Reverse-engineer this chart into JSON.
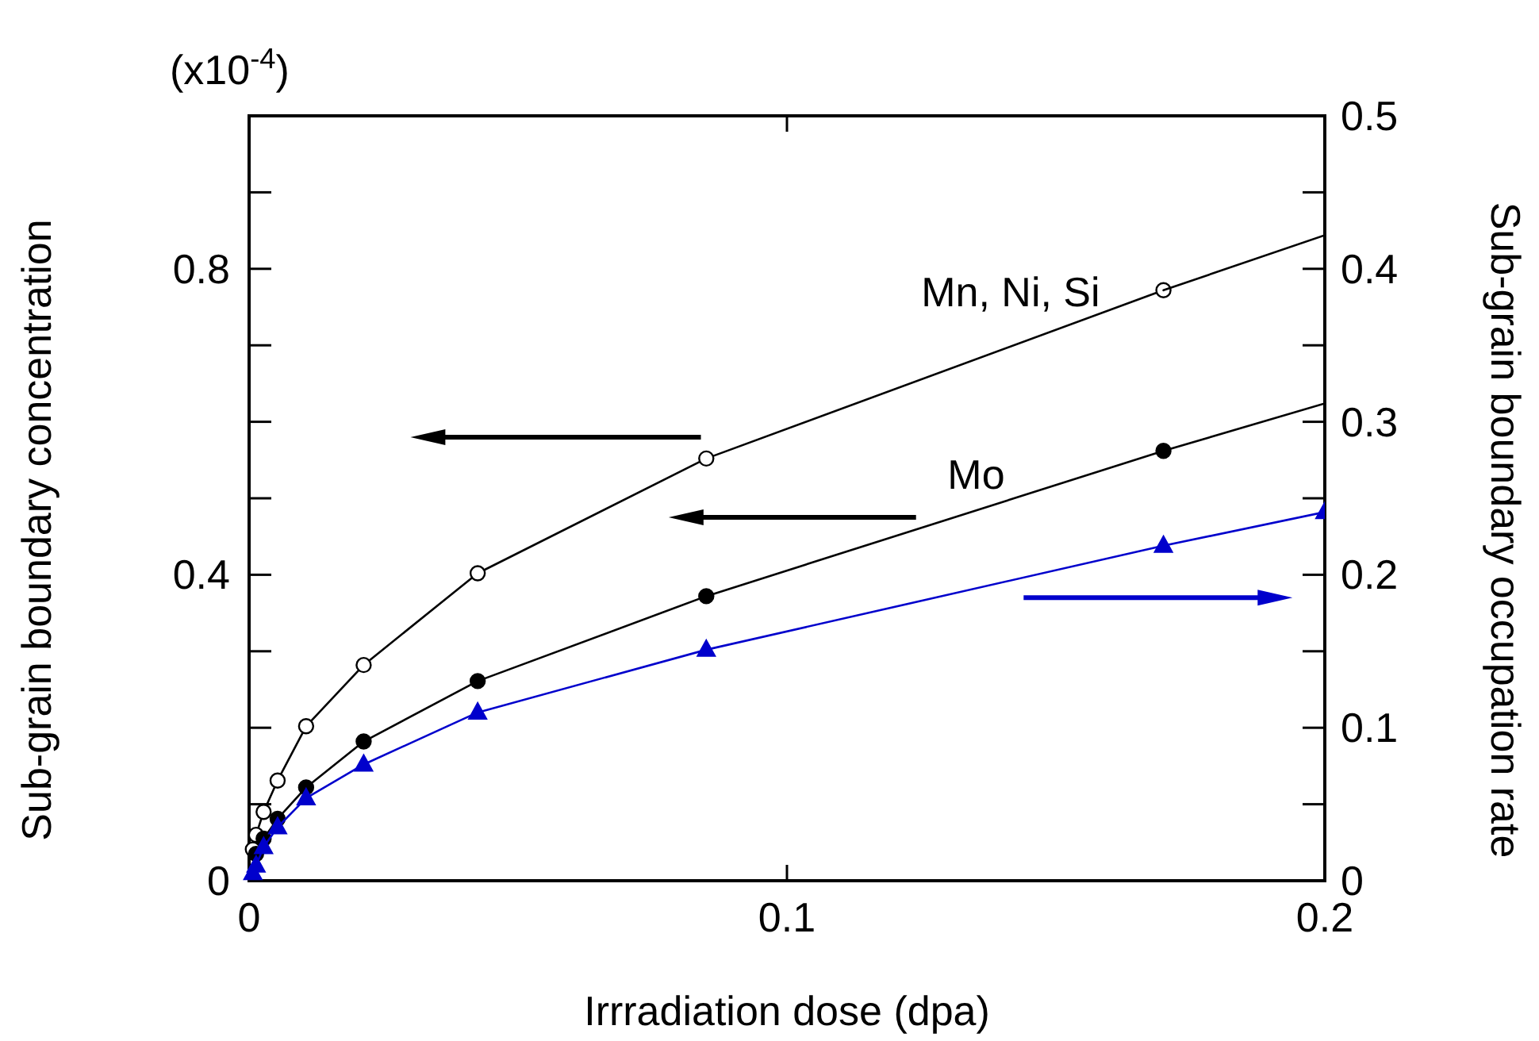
{
  "chart_data": {
    "type": "line",
    "xlabel": "Irrradiation dose (dpa)",
    "ylabel": "Sub-grain boundary concentration",
    "y2label": "Sub-grain boundary occupation rate",
    "annotations": [
      "(x10$^{-4}$)"
    ],
    "xlim": [
      0,
      0.2
    ],
    "xticks": [
      0,
      0.1,
      0.2
    ],
    "ylim": [
      0,
      1.0
    ],
    "yticks": [
      0,
      {
        "value": 0.1,
        "label": null
      },
      {
        "value": 0.2,
        "label": null
      },
      {
        "value": 0.3,
        "label": null
      },
      0.4,
      {
        "value": 0.5,
        "label": null
      },
      {
        "value": 0.6,
        "label": null
      },
      {
        "value": 0.7,
        "label": null
      },
      0.8,
      {
        "value": 0.9,
        "label": null
      }
    ],
    "y2lim": [
      0,
      0.5
    ],
    "y2ticks": [
      0,
      {
        "value": 0.05,
        "label": null
      },
      0.1,
      {
        "value": 0.15,
        "label": null
      },
      0.2,
      {
        "value": 0.25,
        "label": null
      },
      0.3,
      {
        "value": 0.35,
        "label": null
      },
      0.4,
      {
        "value": 0.45,
        "label": null
      },
      0.5
    ],
    "marker": "circle",
    "line_style": "solid",
    "series": [
      {
        "name": "Mn, Ni, Si",
        "color": "#000000",
        "x": [
          0.0007,
          0.0013,
          0.0027,
          0.0053,
          0.0106,
          0.0213,
          0.0425,
          0.085,
          0.17
        ],
        "values": [
          0.041,
          0.06,
          0.09,
          0.131,
          0.202,
          0.282,
          0.402,
          0.552,
          0.772
        ]
      },
      {
        "color": "#000000",
        "marker": "none",
        "x": [
          0.17,
          0.2
        ],
        "values": [
          0.772,
          0.844
        ]
      },
      {
        "name": "Mo",
        "color": "#000000",
        "x": [
          0.0013,
          0.0027,
          0.0053,
          0.0106,
          0.0213,
          0.0425,
          0.085,
          0.17
        ],
        "values": [
          0.035,
          0.055,
          0.081,
          0.122,
          0.182,
          0.261,
          0.372,
          0.562
        ]
      },
      {
        "color": "#000000",
        "marker": "none",
        "x": [
          0.17,
          0.2
        ],
        "values": [
          0.562,
          0.624
        ]
      },
      {
        "color": "#0000cc",
        "axis": "y2",
        "marker": "triangle",
        "x": [
          0.0007,
          0.0013,
          0.0027,
          0.0053,
          0.0106,
          0.0213,
          0.0425,
          0.085,
          0.17,
          0.2
        ],
        "values": [
          0.005,
          0.01,
          0.022,
          0.035,
          0.054,
          0.076,
          0.11,
          0.151,
          0.219,
          0.241
        ]
      }
    ]
  }
}
